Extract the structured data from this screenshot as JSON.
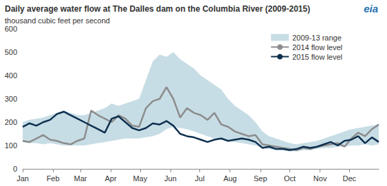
{
  "chart_data": {
    "type": "line",
    "title": "Daily average water flow at The Dalles dam on the Columbia River (2009-2015)",
    "subtitle": "thousand cubic feet per second",
    "logo": "eia",
    "x": [
      1,
      8,
      15,
      22,
      29,
      36,
      43,
      50,
      57,
      64,
      71,
      78,
      85,
      92,
      99,
      106,
      113,
      120,
      127,
      134,
      141,
      148,
      155,
      162,
      169,
      176,
      183,
      190,
      197,
      204,
      211,
      218,
      225,
      232,
      239,
      246,
      253,
      260,
      267,
      274,
      281,
      288,
      295,
      302,
      309,
      316,
      323,
      330,
      337,
      344,
      351,
      358,
      365
    ],
    "xlim": [
      1,
      365
    ],
    "xticks": [
      {
        "value": 1,
        "label": "Jan"
      },
      {
        "value": 32,
        "label": "Feb"
      },
      {
        "value": 60,
        "label": "Mar"
      },
      {
        "value": 91,
        "label": "Apr"
      },
      {
        "value": 121,
        "label": "May"
      },
      {
        "value": 152,
        "label": "Jun"
      },
      {
        "value": 182,
        "label": "Jul"
      },
      {
        "value": 213,
        "label": "Aug"
      },
      {
        "value": 244,
        "label": "Sep"
      },
      {
        "value": 274,
        "label": "Oct"
      },
      {
        "value": 305,
        "label": "Nov"
      },
      {
        "value": 335,
        "label": "Dec"
      }
    ],
    "ylim": [
      0,
      600
    ],
    "yticks": [
      0,
      100,
      200,
      300,
      400,
      500,
      600
    ],
    "grid": false,
    "legend": "top-right",
    "series": [
      {
        "name": "2009-13 range",
        "type": "range",
        "color": "#c7dde5",
        "low": [
          115,
          110,
          110,
          105,
          110,
          105,
          100,
          100,
          100,
          100,
          105,
          110,
          115,
          120,
          125,
          130,
          130,
          130,
          135,
          140,
          150,
          170,
          180,
          175,
          170,
          160,
          150,
          140,
          130,
          125,
          120,
          115,
          110,
          105,
          100,
          90,
          85,
          80,
          80,
          75,
          75,
          80,
          80,
          85,
          90,
          90,
          95,
          95,
          100,
          100,
          105,
          100,
          105
        ],
        "high": [
          200,
          210,
          215,
          220,
          230,
          240,
          250,
          240,
          230,
          230,
          240,
          250,
          260,
          280,
          270,
          280,
          290,
          300,
          380,
          460,
          490,
          480,
          500,
          470,
          450,
          430,
          400,
          380,
          360,
          340,
          300,
          270,
          250,
          230,
          200,
          160,
          140,
          130,
          120,
          110,
          105,
          110,
          115,
          120,
          130,
          140,
          150,
          160,
          170,
          175,
          180,
          185,
          190
        ]
      },
      {
        "name": "2014 flow level",
        "type": "line",
        "color": "#8c8c8c",
        "values": [
          120,
          115,
          130,
          145,
          125,
          120,
          110,
          105,
          120,
          130,
          250,
          230,
          215,
          200,
          230,
          215,
          185,
          180,
          260,
          290,
          300,
          350,
          300,
          220,
          260,
          240,
          230,
          210,
          240,
          190,
          180,
          160,
          150,
          140,
          145,
          105,
          100,
          95,
          90,
          85,
          80,
          90,
          85,
          95,
          100,
          105,
          110,
          95,
          130,
          155,
          140,
          170,
          190
        ]
      },
      {
        "name": "2015 flow level",
        "type": "line",
        "color": "#0d2f4f",
        "values": [
          180,
          195,
          185,
          200,
          210,
          235,
          245,
          230,
          215,
          200,
          185,
          170,
          155,
          215,
          225,
          200,
          175,
          165,
          175,
          195,
          190,
          205,
          185,
          150,
          140,
          135,
          125,
          115,
          125,
          130,
          120,
          125,
          130,
          125,
          115,
          90,
          95,
          85,
          85,
          80,
          85,
          95,
          90,
          95,
          105,
          115,
          100,
          120,
          125,
          140,
          110,
          135,
          115
        ]
      }
    ]
  }
}
